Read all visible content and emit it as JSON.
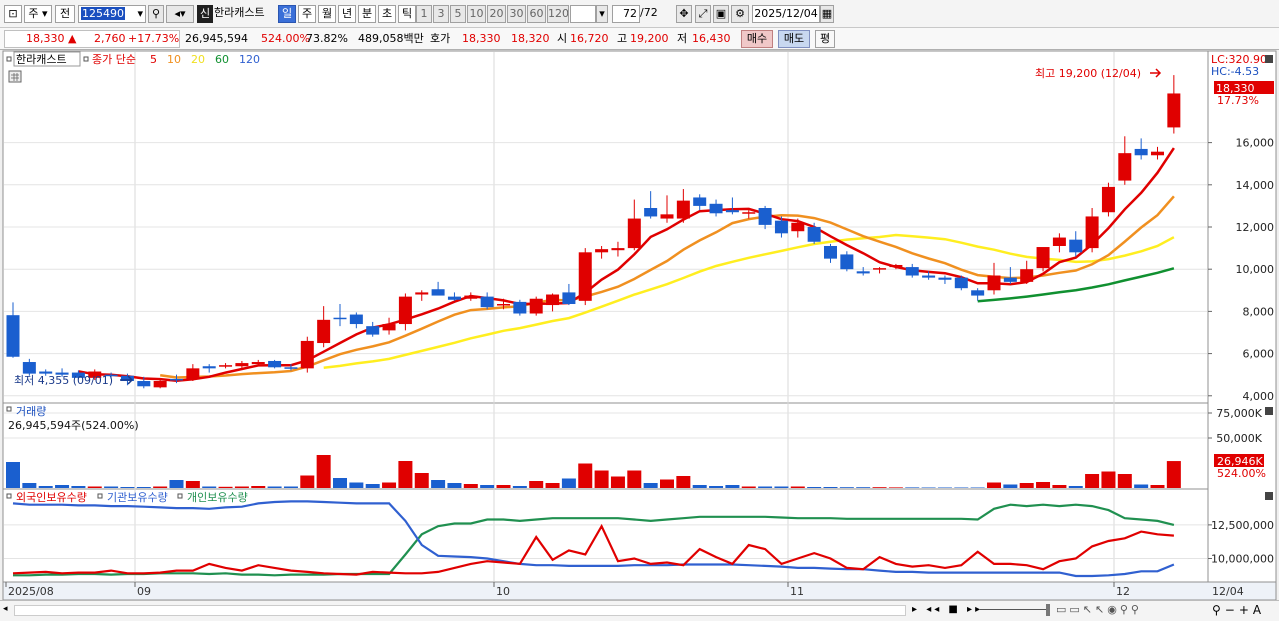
{
  "toolbar": {
    "mode_type": "주",
    "mode_range": "전",
    "code": "125490",
    "stock_name": "한라캐스트",
    "name_badge": "신",
    "periods": [
      "일",
      "주",
      "월",
      "년",
      "분",
      "초",
      "틱"
    ],
    "active_period": "일",
    "intervals": [
      "1",
      "3",
      "5",
      "10",
      "20",
      "30",
      "60",
      "120"
    ],
    "count_value": "72",
    "count_total": "/72",
    "date_value": "2025/12/04"
  },
  "quote": {
    "price": "18,330",
    "change_arrow": "▲",
    "change": "2,760",
    "change_pct": "+17.73%",
    "volume": "26,945,594",
    "volume_ratio": "524.00%",
    "turnover": "73.82%",
    "amount": "489,058백만",
    "bid_label": "호가",
    "ask_price": "18,330",
    "bid_price": "18,320",
    "open_label": "시",
    "open": "16,720",
    "high_label": "고",
    "high": "19,200",
    "low_label": "저",
    "low": "16,430",
    "buy_button": "매수",
    "sell_button": "매도",
    "eval_button": "평"
  },
  "legend": {
    "name": "한라캐스트",
    "ma_label": "종가 단순",
    "ma_periods": [
      {
        "p": "5",
        "color": "#e00000"
      },
      {
        "p": "10",
        "color": "#f09020"
      },
      {
        "p": "20",
        "color": "#f0e020"
      },
      {
        "p": "60",
        "color": "#109030"
      },
      {
        "p": "120",
        "color": "#3060d0"
      }
    ]
  },
  "price_panel": {
    "lc": "LC:320.90",
    "hc": "HC:-4.53",
    "last_price": "18,330",
    "last_pct": "17.73%",
    "high_note": "최고 19,200 (12/04)",
    "low_note": "최저 4,355 (09/01)",
    "y_ticks": [
      "16,000",
      "14,000",
      "12,000",
      "10,000",
      "8,000",
      "6,000",
      "4,000"
    ]
  },
  "volume_panel": {
    "label": "거래량",
    "value": "26,945,594주(524.00%)",
    "y_ticks": [
      "75,000K",
      "50,000K"
    ],
    "last_badge": "26,946K",
    "last_pct": "524.00%"
  },
  "holder_panel": {
    "legend": [
      {
        "name": "외국인보유수량",
        "color": "#e00000"
      },
      {
        "name": "기관보유수량",
        "color": "#3060d0"
      },
      {
        "name": "개인보유수량",
        "color": "#209050"
      }
    ],
    "y_ticks": [
      "12,500,000",
      "10,000,000"
    ]
  },
  "x_axis": {
    "labels": [
      "2025/08",
      "09",
      "10",
      "11",
      "12"
    ],
    "right_label": "12/04"
  },
  "chart_data": {
    "type": "candlestick",
    "candles": [
      {
        "o": 7820,
        "h": 8430,
        "l": 5800,
        "c": 5850,
        "v": 26000
      },
      {
        "o": 5600,
        "h": 5750,
        "l": 4950,
        "c": 5050,
        "v": 5000
      },
      {
        "o": 5150,
        "h": 5250,
        "l": 4950,
        "c": 5050,
        "v": 2000
      },
      {
        "o": 5100,
        "h": 5300,
        "l": 4900,
        "c": 5000,
        "v": 3000
      },
      {
        "o": 5100,
        "h": 5200,
        "l": 4800,
        "c": 4850,
        "v": 2000
      },
      {
        "o": 4850,
        "h": 5250,
        "l": 4750,
        "c": 5150,
        "v": 1500
      },
      {
        "o": 5000,
        "h": 5100,
        "l": 4800,
        "c": 4950,
        "v": 1500
      },
      {
        "o": 4950,
        "h": 5050,
        "l": 4500,
        "c": 4700,
        "v": 1000
      },
      {
        "o": 4700,
        "h": 4900,
        "l": 4355,
        "c": 4450,
        "v": 1000
      },
      {
        "o": 4400,
        "h": 4800,
        "l": 4355,
        "c": 4700,
        "v": 1500
      },
      {
        "o": 4800,
        "h": 5000,
        "l": 4600,
        "c": 4750,
        "v": 8000
      },
      {
        "o": 4800,
        "h": 5500,
        "l": 4700,
        "c": 5300,
        "v": 7000
      },
      {
        "o": 5400,
        "h": 5500,
        "l": 5100,
        "c": 5300,
        "v": 1500
      },
      {
        "o": 5400,
        "h": 5550,
        "l": 5300,
        "c": 5450,
        "v": 1200
      },
      {
        "o": 5400,
        "h": 5650,
        "l": 5300,
        "c": 5550,
        "v": 1500
      },
      {
        "o": 5500,
        "h": 5700,
        "l": 5400,
        "c": 5600,
        "v": 2000
      },
      {
        "o": 5650,
        "h": 5700,
        "l": 5300,
        "c": 5350,
        "v": 1500
      },
      {
        "o": 5350,
        "h": 5500,
        "l": 5200,
        "c": 5300,
        "v": 1500
      },
      {
        "o": 5300,
        "h": 6800,
        "l": 5100,
        "c": 6600,
        "v": 12500
      },
      {
        "o": 6500,
        "h": 8250,
        "l": 6300,
        "c": 7600,
        "v": 33000
      },
      {
        "o": 7700,
        "h": 8350,
        "l": 7300,
        "c": 7650,
        "v": 10000
      },
      {
        "o": 7850,
        "h": 7950,
        "l": 7200,
        "c": 7400,
        "v": 5500
      },
      {
        "o": 7300,
        "h": 7500,
        "l": 6800,
        "c": 6900,
        "v": 4000
      },
      {
        "o": 7100,
        "h": 7700,
        "l": 6900,
        "c": 7400,
        "v": 5500
      },
      {
        "o": 7400,
        "h": 8850,
        "l": 7100,
        "c": 8700,
        "v": 27000
      },
      {
        "o": 8800,
        "h": 9000,
        "l": 8500,
        "c": 8900,
        "v": 15000
      },
      {
        "o": 9050,
        "h": 9400,
        "l": 8800,
        "c": 8750,
        "v": 8000
      },
      {
        "o": 8700,
        "h": 8900,
        "l": 8500,
        "c": 8550,
        "v": 5000
      },
      {
        "o": 8600,
        "h": 8900,
        "l": 8500,
        "c": 8750,
        "v": 4000
      },
      {
        "o": 8700,
        "h": 8900,
        "l": 8100,
        "c": 8200,
        "v": 3000
      },
      {
        "o": 8300,
        "h": 8600,
        "l": 8100,
        "c": 8350,
        "v": 3000
      },
      {
        "o": 8450,
        "h": 8550,
        "l": 7800,
        "c": 7900,
        "v": 2000
      },
      {
        "o": 7900,
        "h": 8700,
        "l": 7800,
        "c": 8600,
        "v": 7000
      },
      {
        "o": 8300,
        "h": 8850,
        "l": 8000,
        "c": 8800,
        "v": 5000
      },
      {
        "o": 8900,
        "h": 9300,
        "l": 8300,
        "c": 8350,
        "v": 9500
      },
      {
        "o": 8500,
        "h": 11000,
        "l": 8300,
        "c": 10800,
        "v": 24500
      },
      {
        "o": 10800,
        "h": 11100,
        "l": 10500,
        "c": 10950,
        "v": 17500
      },
      {
        "o": 10900,
        "h": 11300,
        "l": 10600,
        "c": 11000,
        "v": 11500
      },
      {
        "o": 11000,
        "h": 13300,
        "l": 10900,
        "c": 12400,
        "v": 17500
      },
      {
        "o": 12900,
        "h": 13700,
        "l": 12400,
        "c": 12500,
        "v": 5000
      },
      {
        "o": 12400,
        "h": 13500,
        "l": 12200,
        "c": 12600,
        "v": 8500
      },
      {
        "o": 12400,
        "h": 13800,
        "l": 12200,
        "c": 13250,
        "v": 12000
      },
      {
        "o": 13400,
        "h": 13550,
        "l": 12800,
        "c": 13000,
        "v": 3000
      },
      {
        "o": 13100,
        "h": 13300,
        "l": 12500,
        "c": 12650,
        "v": 2000
      },
      {
        "o": 12800,
        "h": 13400,
        "l": 12600,
        "c": 12700,
        "v": 3000
      },
      {
        "o": 12650,
        "h": 12800,
        "l": 12400,
        "c": 12700,
        "v": 1500
      },
      {
        "o": 12900,
        "h": 13000,
        "l": 11900,
        "c": 12100,
        "v": 1500
      },
      {
        "o": 12300,
        "h": 12500,
        "l": 11500,
        "c": 11700,
        "v": 1500
      },
      {
        "o": 11800,
        "h": 12400,
        "l": 11500,
        "c": 12200,
        "v": 1500
      },
      {
        "o": 12000,
        "h": 12200,
        "l": 11200,
        "c": 11300,
        "v": 1000
      },
      {
        "o": 11100,
        "h": 11200,
        "l": 10300,
        "c": 10500,
        "v": 1000
      },
      {
        "o": 10700,
        "h": 10850,
        "l": 9900,
        "c": 10000,
        "v": 800
      },
      {
        "o": 9900,
        "h": 10100,
        "l": 9700,
        "c": 9800,
        "v": 800
      },
      {
        "o": 10000,
        "h": 10100,
        "l": 9800,
        "c": 10050,
        "v": 800
      },
      {
        "o": 10100,
        "h": 10250,
        "l": 10000,
        "c": 10200,
        "v": 600
      },
      {
        "o": 10100,
        "h": 10250,
        "l": 9600,
        "c": 9700,
        "v": 600
      },
      {
        "o": 9700,
        "h": 9900,
        "l": 9500,
        "c": 9600,
        "v": 500
      },
      {
        "o": 9600,
        "h": 9700,
        "l": 9300,
        "c": 9500,
        "v": 500
      },
      {
        "o": 9600,
        "h": 9700,
        "l": 9000,
        "c": 9100,
        "v": 500
      },
      {
        "o": 9000,
        "h": 9100,
        "l": 8500,
        "c": 8750,
        "v": 500
      },
      {
        "o": 9000,
        "h": 10300,
        "l": 8800,
        "c": 9700,
        "v": 5500
      },
      {
        "o": 9600,
        "h": 10100,
        "l": 9300,
        "c": 9400,
        "v": 3500
      },
      {
        "o": 9400,
        "h": 10400,
        "l": 9300,
        "c": 10000,
        "v": 5000
      },
      {
        "o": 10050,
        "h": 11000,
        "l": 9900,
        "c": 11050,
        "v": 6000
      },
      {
        "o": 11100,
        "h": 11700,
        "l": 10800,
        "c": 11500,
        "v": 3000
      },
      {
        "o": 11400,
        "h": 11800,
        "l": 10600,
        "c": 10800,
        "v": 2000
      },
      {
        "o": 11000,
        "h": 12900,
        "l": 10800,
        "c": 12500,
        "v": 14000
      },
      {
        "o": 12700,
        "h": 14100,
        "l": 12500,
        "c": 13900,
        "v": 16500
      },
      {
        "o": 14200,
        "h": 16300,
        "l": 14000,
        "c": 15500,
        "v": 14000
      },
      {
        "o": 15700,
        "h": 16200,
        "l": 15200,
        "c": 15400,
        "v": 3500
      },
      {
        "o": 15400,
        "h": 15800,
        "l": 15200,
        "c": 15570,
        "v": 3000
      },
      {
        "o": 16720,
        "h": 19200,
        "l": 16430,
        "c": 18330,
        "v": 26946
      }
    ],
    "price_range": [
      3800,
      20200
    ],
    "volume_max": 82000,
    "holders_range": [
      8400000,
      14500000
    ],
    "foreign": [
      8900000,
      8950000,
      9000000,
      8900000,
      8950000,
      8950000,
      9100000,
      8900000,
      8900000,
      8950000,
      9100000,
      9100000,
      9600000,
      9300000,
      9100000,
      9500000,
      9300000,
      9100000,
      9000000,
      8900000,
      8850000,
      8800000,
      9000000,
      8950000,
      8900000,
      8900000,
      9000000,
      9300000,
      9600000,
      9800000,
      9700000,
      9600000,
      11600000,
      9900000,
      10600000,
      10300000,
      12400000,
      9800000,
      10000000,
      9600000,
      9700000,
      9500000,
      10700000,
      10100000,
      9600000,
      11000000,
      10700000,
      9600000,
      10000000,
      10400000,
      10000000,
      9300000,
      9200000,
      10100000,
      9600000,
      9400000,
      9500000,
      9300000,
      9500000,
      10500000,
      9600000,
      9600000,
      9500000,
      9200000,
      9800000,
      10000000,
      10900000,
      11300000,
      11500000,
      12000000,
      11800000,
      11700000
    ],
    "institution": [
      14100000,
      14000000,
      14000000,
      14000000,
      13950000,
      13950000,
      13900000,
      13900000,
      13850000,
      13800000,
      13750000,
      13750000,
      13700000,
      13800000,
      13850000,
      14100000,
      14200000,
      14250000,
      14250000,
      14200000,
      14150000,
      14100000,
      14100000,
      14100000,
      12800000,
      11000000,
      10200000,
      10150000,
      10100000,
      10000000,
      9800000,
      9600000,
      9500000,
      9500000,
      9450000,
      9450000,
      9450000,
      9450000,
      9500000,
      9500000,
      9500000,
      9550000,
      9550000,
      9550000,
      9550000,
      9500000,
      9450000,
      9400000,
      9300000,
      9300000,
      9250000,
      9200000,
      9200000,
      9100000,
      9000000,
      9000000,
      8950000,
      8950000,
      8950000,
      8950000,
      8950000,
      8950000,
      8950000,
      8950000,
      8950000,
      8700000,
      8700000,
      8750000,
      8850000,
      9050000,
      9050000,
      9550000
    ],
    "individual": [
      8750000,
      8750000,
      8800000,
      8800000,
      8850000,
      8850000,
      8800000,
      8850000,
      8850000,
      8900000,
      8900000,
      8900000,
      8850000,
      8900000,
      8800000,
      8800000,
      8750000,
      8800000,
      8800000,
      8800000,
      8850000,
      8850000,
      8850000,
      8850000,
      10300000,
      11800000,
      12400000,
      12600000,
      12600000,
      12900000,
      12900000,
      12800000,
      12900000,
      13000000,
      13000000,
      13000000,
      13000000,
      13000000,
      12900000,
      12800000,
      12900000,
      13000000,
      13100000,
      13100000,
      13100000,
      13100000,
      13100000,
      13050000,
      13000000,
      13000000,
      13000000,
      12950000,
      12950000,
      12950000,
      12950000,
      12950000,
      12950000,
      12950000,
      12950000,
      12900000,
      13700000,
      14000000,
      13900000,
      14000000,
      13900000,
      14000000,
      13900000,
      13600000,
      13000000,
      12900000,
      12800000,
      12500000
    ]
  }
}
